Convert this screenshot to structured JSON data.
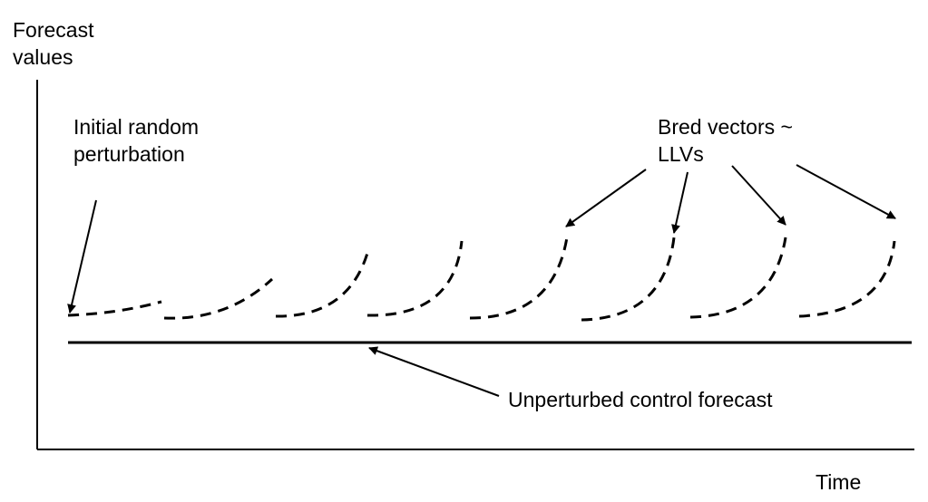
{
  "labels": {
    "y_axis": [
      "Forecast",
      "values"
    ],
    "x_axis": "Time",
    "initial": [
      "Initial random",
      "perturbation"
    ],
    "bred": [
      "Bred vectors ~",
      "LLVs"
    ],
    "control": "Unperturbed control forecast"
  },
  "diagram": {
    "segments_count": 8,
    "segment_shape": "dashed curve, increasingly steep upward growth",
    "control_line": "solid horizontal",
    "arrows_from_bred_label": 4
  },
  "colors": {
    "ink": "#000000",
    "background": "#ffffff"
  }
}
